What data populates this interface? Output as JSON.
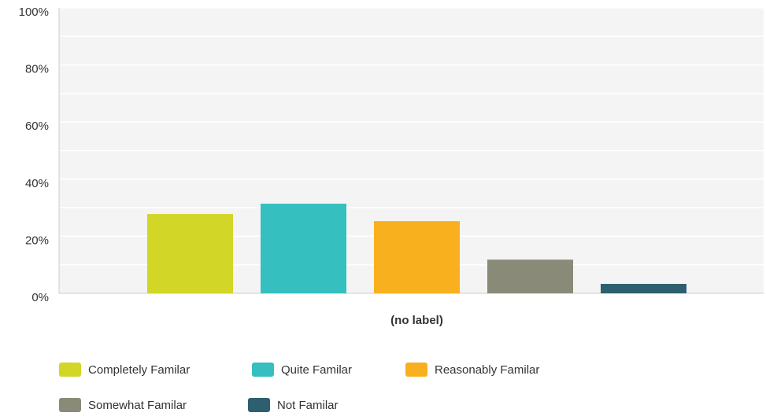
{
  "chart_data": {
    "type": "bar",
    "categories": [
      "(no label)"
    ],
    "series": [
      {
        "name": "Completely Familar",
        "color": "#d1d627",
        "values": [
          27.8
        ]
      },
      {
        "name": "Quite Familar",
        "color": "#35bfbf",
        "values": [
          31.4
        ]
      },
      {
        "name": "Reasonably Familar",
        "color": "#f8b01e",
        "values": [
          25.3
        ]
      },
      {
        "name": "Somewhat Familar",
        "color": "#8a8a78",
        "values": [
          11.8
        ]
      },
      {
        "name": "Not Familar",
        "color": "#2d5f6e",
        "values": [
          3.3
        ]
      }
    ],
    "ylim": [
      0,
      100
    ],
    "yticks": [
      {
        "value": 0,
        "label": "0%"
      },
      {
        "value": 20,
        "label": "20%"
      },
      {
        "value": 40,
        "label": "40%"
      },
      {
        "value": 60,
        "label": "60%"
      },
      {
        "value": 80,
        "label": "80%"
      },
      {
        "value": 100,
        "label": "100%"
      }
    ],
    "minor_yticks": [
      10,
      30,
      50,
      70,
      90
    ],
    "grid": true,
    "legend": "bottom"
  }
}
